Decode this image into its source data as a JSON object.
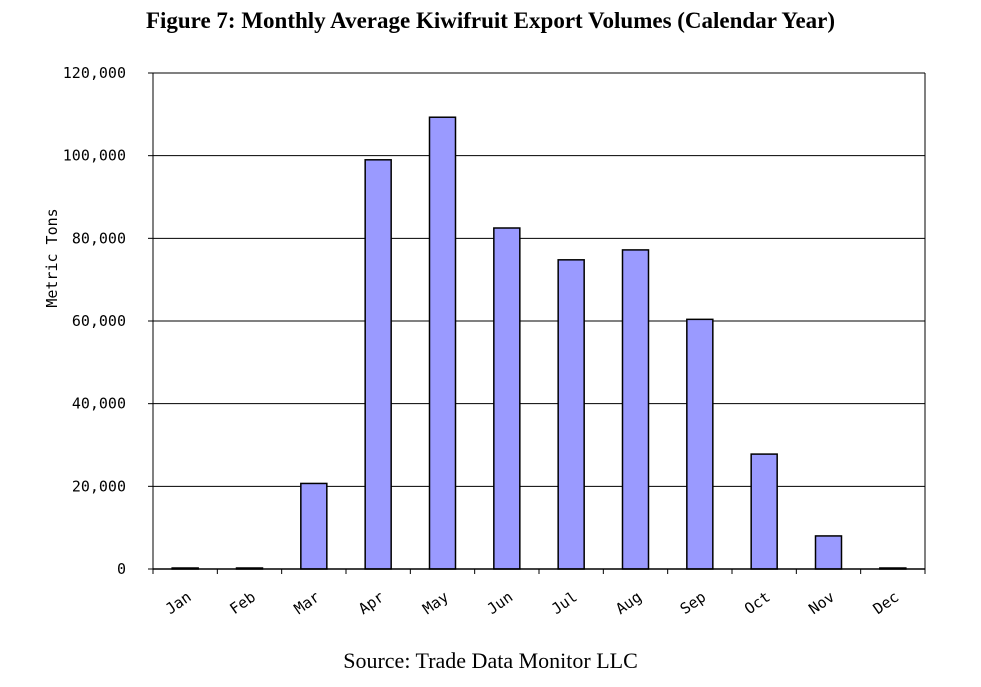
{
  "title": "Figure 7: Monthly Average Kiwifruit Export Volumes (Calendar Year)",
  "source": "Source: Trade Data Monitor LLC",
  "colors": {
    "bar_fill": "#9a9aff",
    "bar_stroke": "#000000",
    "grid": "#000000"
  },
  "chart_data": {
    "type": "bar",
    "title": "Figure 7: Monthly Average Kiwifruit Export Volumes (Calendar Year)",
    "xlabel": "",
    "ylabel": "Metric Tons",
    "categories": [
      "Jan",
      "Feb",
      "Mar",
      "Apr",
      "May",
      "Jun",
      "Jul",
      "Aug",
      "Sep",
      "Oct",
      "Nov",
      "Dec"
    ],
    "values": [
      200,
      200,
      20700,
      99000,
      109300,
      82500,
      74800,
      77200,
      60400,
      27800,
      8000,
      200
    ],
    "ylim": [
      0,
      120000
    ],
    "yticks": [
      0,
      20000,
      40000,
      60000,
      80000,
      100000,
      120000
    ],
    "ytick_labels": [
      "0",
      "20,000",
      "40,000",
      "60,000",
      "80,000",
      "100,000",
      "120,000"
    ],
    "grid": true,
    "legend": "none"
  }
}
